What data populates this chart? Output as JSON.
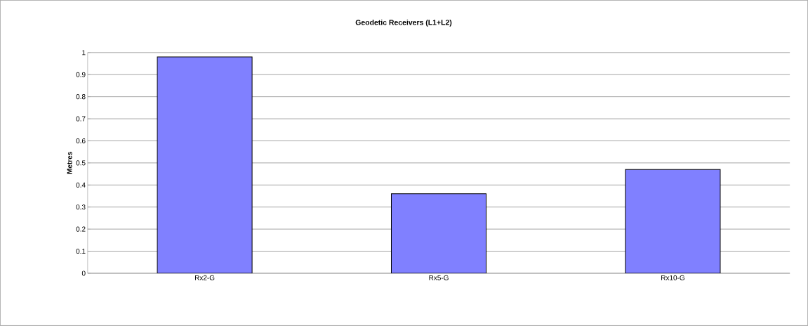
{
  "chart_data": {
    "type": "bar",
    "title": "Geodetic Receivers (L1+L2)",
    "ylabel": "Metres",
    "categories": [
      "Rx2-G",
      "Rx5-G",
      "Rx10-G"
    ],
    "values": [
      0.98,
      0.36,
      0.47
    ],
    "color": "#8080ff",
    "ylim": [
      0,
      1
    ],
    "yticks": [
      0,
      0.1,
      0.2,
      0.3,
      0.4,
      0.5,
      0.6,
      0.7,
      0.8,
      0.9,
      1
    ],
    "grid": "y"
  }
}
